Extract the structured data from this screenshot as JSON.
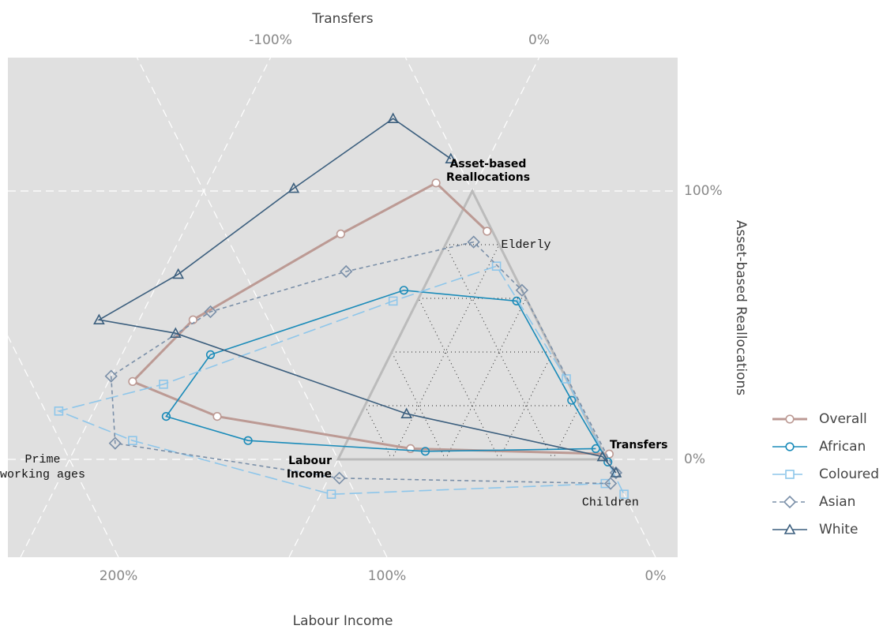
{
  "chart_data": {
    "type": "ternary",
    "axis_titles": {
      "top": "Transfers",
      "bottom": "Labour Income",
      "right": "Asset-based Reallocations"
    },
    "labour_ticks": [
      {
        "value": 0,
        "label": "0%"
      },
      {
        "value": 100,
        "label": "100%"
      },
      {
        "value": 200,
        "label": "200%"
      }
    ],
    "transfers_ticks": [
      {
        "value": -100,
        "label": "-100%"
      },
      {
        "value": 0,
        "label": "0%"
      }
    ],
    "asset_ticks": [
      {
        "value": 0,
        "label": "0%"
      },
      {
        "value": 100,
        "label": "100%"
      }
    ],
    "grid": true,
    "vertex_labels": {
      "asset": [
        "Asset-based",
        "Reallocations"
      ],
      "transfers": [
        "Transfers"
      ],
      "labour": [
        "Labour",
        "Income"
      ]
    },
    "annotations": [
      {
        "text": [
          "Elderly"
        ],
        "labour": -10,
        "transfers": 30,
        "asset": 80
      },
      {
        "text": [
          "Prime",
          "working ages"
        ],
        "labour": 210,
        "transfers": -110,
        "asset": 0
      },
      {
        "text": [
          "Children"
        ],
        "labour": -7,
        "transfers": 117,
        "asset": -16
      }
    ],
    "series": [
      {
        "name": "Overall",
        "color": "#bc9a94",
        "linestyle": "solid",
        "linewidth": 3,
        "marker": "circle",
        "labour": [
          -2,
          71,
          137,
          162,
          128,
          57,
          12,
          2
        ],
        "transfers": [
          100,
          25,
          -53,
          -91,
          -80,
          -41,
          -15,
          13
        ],
        "asset": [
          2,
          4,
          16,
          29,
          52,
          84,
          103,
          85
        ]
      },
      {
        "name": "African",
        "color": "#1a8bb9",
        "linestyle": "solid",
        "linewidth": 1.6,
        "marker": "circle",
        "labour": [
          2,
          66,
          130,
          156,
          128,
          44,
          4,
          2,
          0
        ],
        "transfers": [
          94,
          31,
          -37,
          -72,
          -67,
          -7,
          37,
          76,
          101
        ],
        "asset": [
          4,
          3,
          7,
          16,
          39,
          63,
          59,
          22,
          -1
        ]
      },
      {
        "name": "Coloured",
        "color": "#8ec6ea",
        "linestyle": "longdash",
        "linewidth": 1.6,
        "marker": "square",
        "labour": [
          5,
          109,
          173,
          195,
          151,
          50,
          5,
          0,
          0
        ],
        "transfers": [
          104,
          4,
          -80,
          -113,
          -79,
          -9,
          23,
          70,
          113
        ],
        "asset": [
          -9,
          -13,
          7,
          18,
          28,
          59,
          72,
          30,
          -13
        ]
      },
      {
        "name": "Asian",
        "color": "#7a8fa8",
        "linestyle": "dashed",
        "linewidth": 1.6,
        "marker": "diamond",
        "labour": [
          3,
          103,
          180,
          169,
          120,
          62,
          9,
          0,
          -1
        ],
        "transfers": [
          106,
          4,
          -86,
          -100,
          -75,
          -32,
          10,
          37,
          106
        ],
        "asset": [
          -9,
          -7,
          6,
          31,
          55,
          70,
          81,
          63,
          -5
        ]
      },
      {
        "name": "White",
        "color": "#3c5f7e",
        "linestyle": "solid",
        "linewidth": 1.6,
        "marker": "triangle",
        "labour": [
          -1,
          1,
          66,
          137,
          163,
          125,
          66,
          16,
          2
        ],
        "transfers": [
          106,
          98,
          17,
          -84,
          -115,
          -94,
          -67,
          -43,
          -14
        ],
        "asset": [
          -5,
          1,
          17,
          47,
          52,
          69,
          101,
          127,
          112
        ]
      }
    ]
  }
}
